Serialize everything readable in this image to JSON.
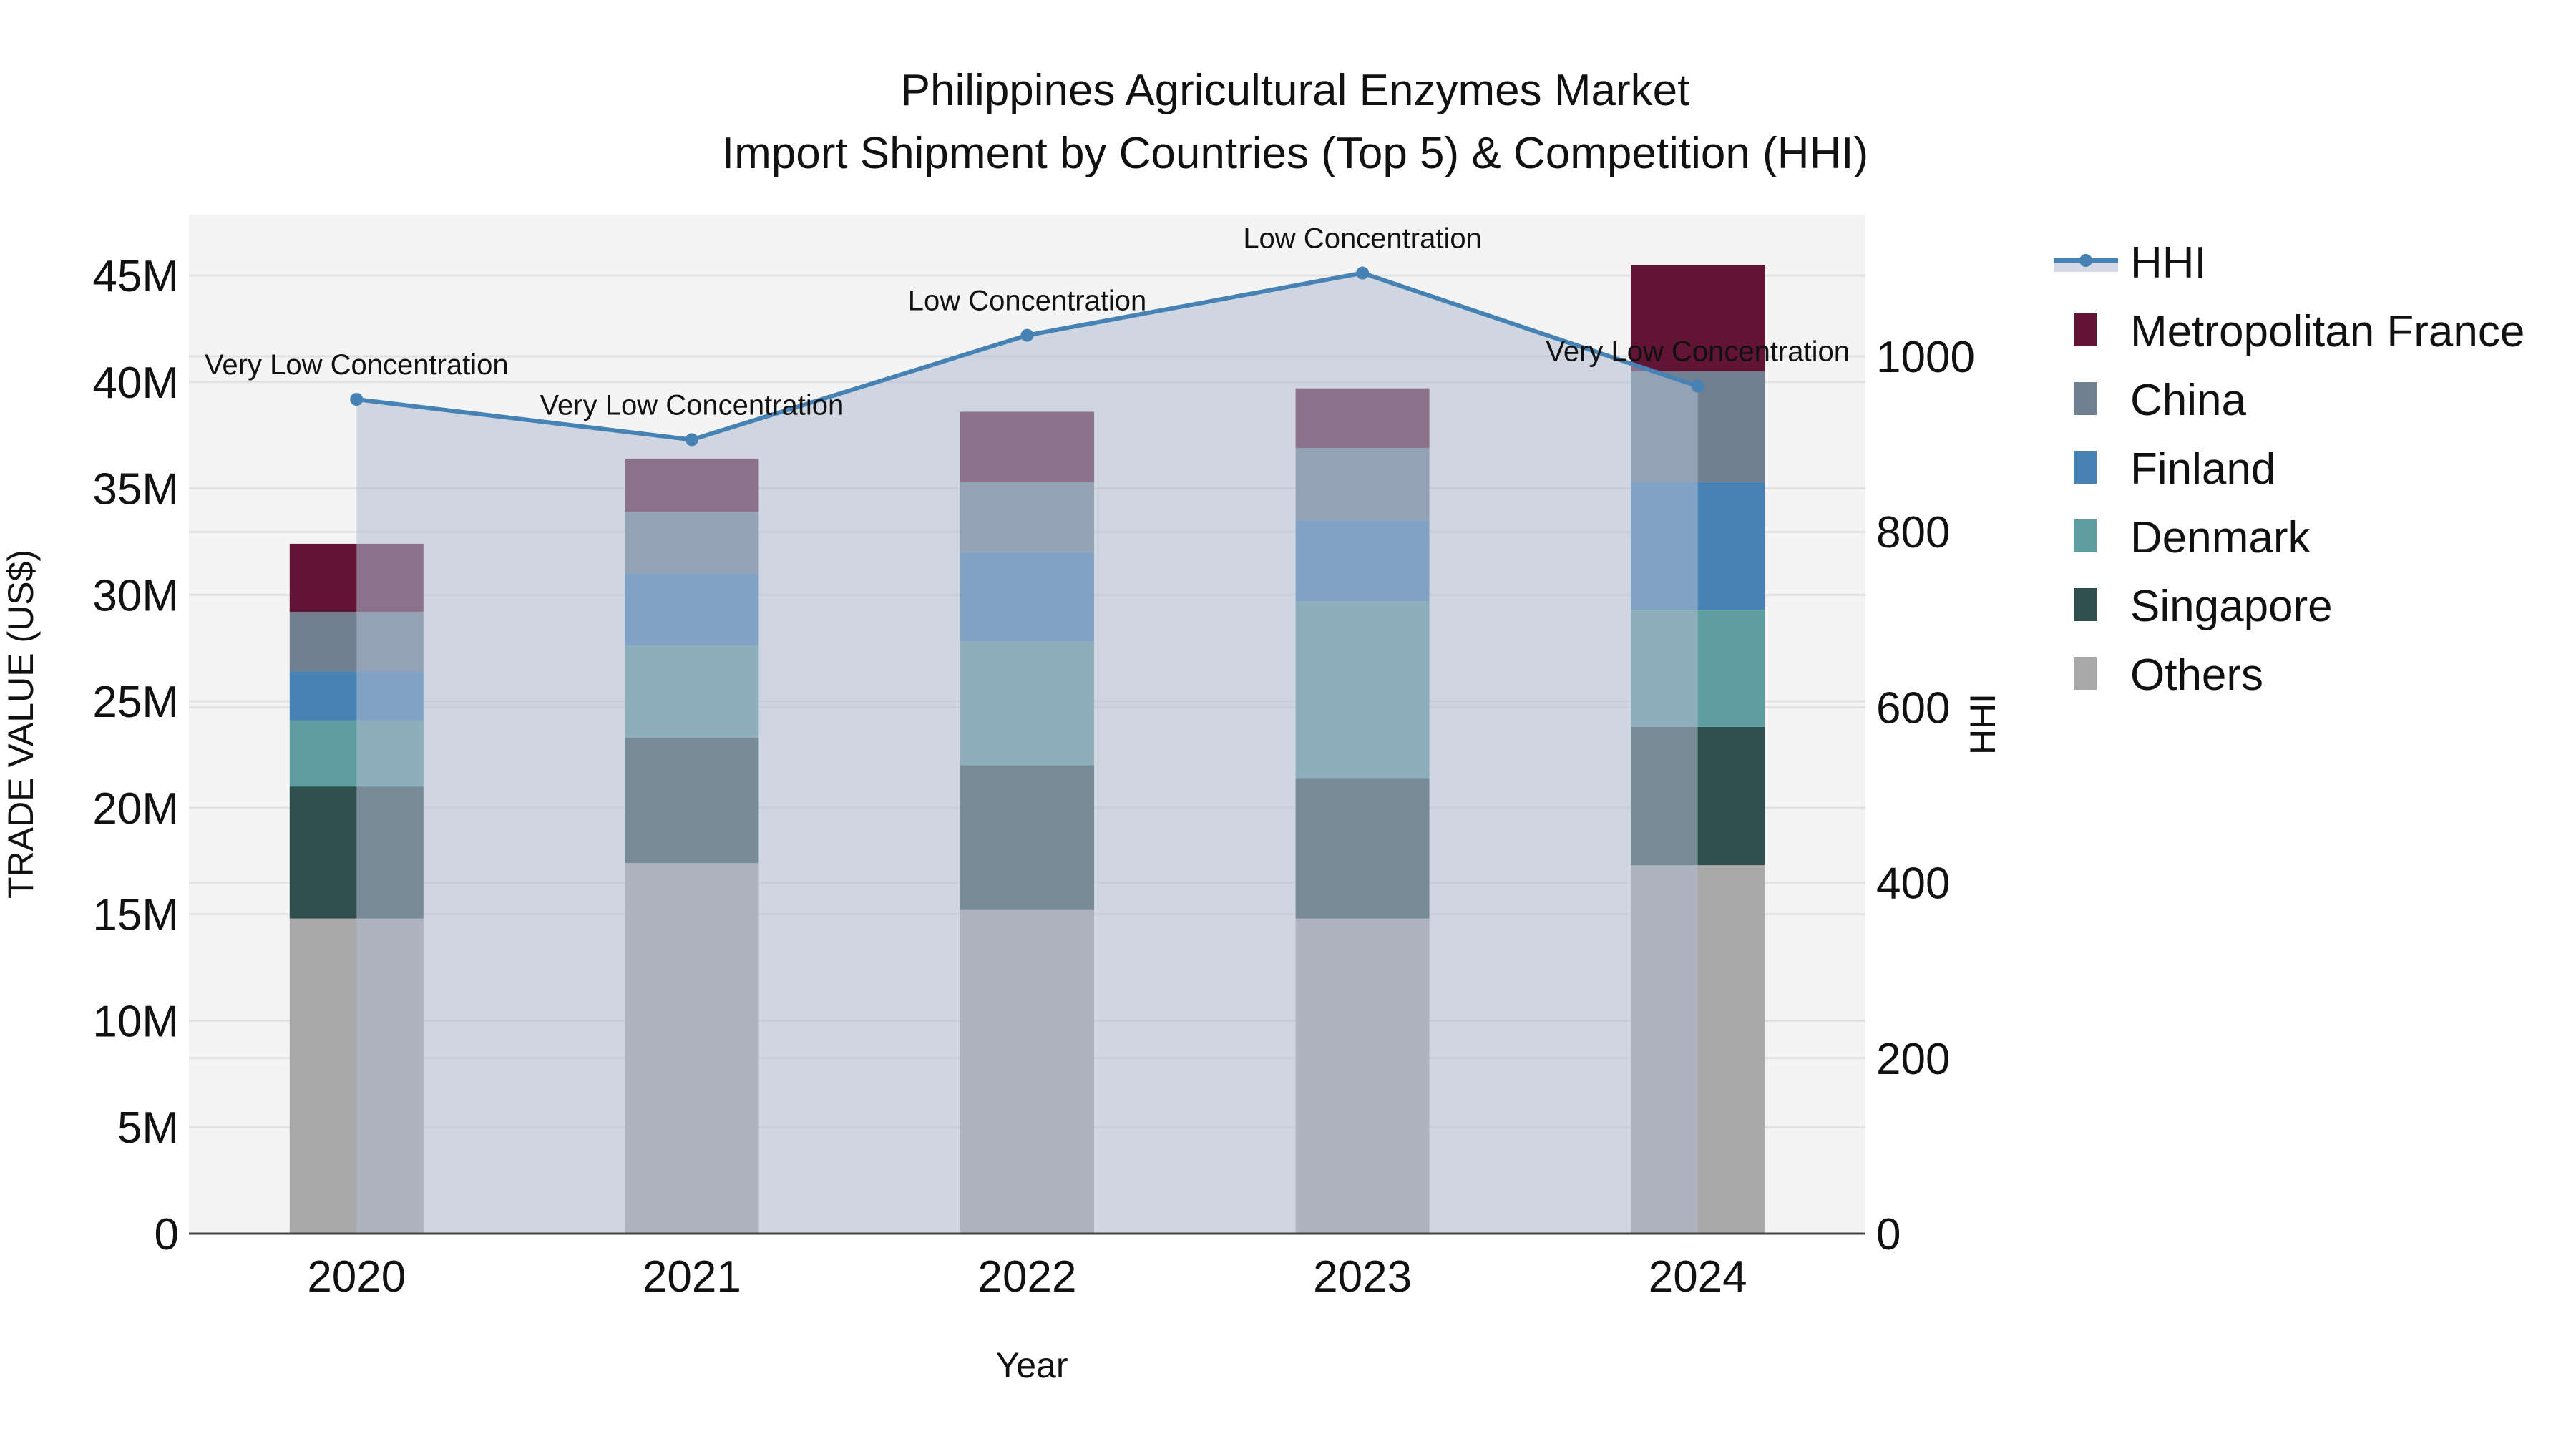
{
  "title": {
    "line1": "Philippines Agricultural Enzymes Market",
    "line2": "Import Shipment by Countries (Top 5) & Competition (HHI)"
  },
  "axes": {
    "x_title": "Year",
    "y_left_title": "TRADE VALUE (US$)",
    "y_right_title": "HHI",
    "y_left_ticks": [
      "0",
      "5M",
      "10M",
      "15M",
      "20M",
      "25M",
      "30M",
      "35M",
      "40M",
      "45M"
    ],
    "y_right_ticks": [
      "0",
      "200",
      "400",
      "600",
      "800",
      "1000"
    ]
  },
  "legend": {
    "items": [
      {
        "label": "HHI",
        "type": "line",
        "color": "#4682b4"
      },
      {
        "label": "Metropolitan France",
        "type": "bar",
        "color": "#611434"
      },
      {
        "label": "China",
        "type": "bar",
        "color": "#708090"
      },
      {
        "label": "Finland",
        "type": "bar",
        "color": "#4682b4"
      },
      {
        "label": "Denmark",
        "type": "bar",
        "color": "#5f9ea0"
      },
      {
        "label": "Singapore",
        "type": "bar",
        "color": "#2f4f4f"
      },
      {
        "label": "Others",
        "type": "bar",
        "color": "#a9a9a9"
      }
    ]
  },
  "colors": {
    "plot_bg": "#f4f4f4",
    "grid": "#e2e2e2",
    "hhi_line": "#4682b4",
    "hhi_fill": "rgba(176,190,210,0.55)",
    "axis_line": "#444444"
  },
  "chart_data": {
    "type": "bar",
    "stacked": true,
    "title": "Philippines Agricultural Enzymes Market — Import Shipment by Countries (Top 5) & Competition (HHI)",
    "xlabel": "Year",
    "ylabel": "TRADE VALUE (US$)",
    "y2label": "HHI",
    "categories": [
      "2020",
      "2021",
      "2022",
      "2023",
      "2024"
    ],
    "ylim": [
      0,
      48000000
    ],
    "y2lim": [
      0,
      1150
    ],
    "grid": true,
    "legend_position": "right",
    "series": [
      {
        "name": "Others",
        "color": "#a9a9a9",
        "values": [
          14800000,
          17400000,
          15200000,
          14800000,
          17300000
        ]
      },
      {
        "name": "Singapore",
        "color": "#2f4f4f",
        "values": [
          6200000,
          5900000,
          6800000,
          6600000,
          6500000
        ]
      },
      {
        "name": "Denmark",
        "color": "#5f9ea0",
        "values": [
          3100000,
          4300000,
          5800000,
          8300000,
          5500000
        ]
      },
      {
        "name": "Finland",
        "color": "#4682b4",
        "values": [
          2300000,
          3400000,
          4200000,
          3800000,
          6000000
        ]
      },
      {
        "name": "China",
        "color": "#708090",
        "values": [
          2800000,
          2900000,
          3300000,
          3400000,
          5200000
        ]
      },
      {
        "name": "Metropolitan France",
        "color": "#611434",
        "values": [
          3200000,
          2500000,
          3300000,
          2800000,
          5000000
        ]
      }
    ],
    "line_series": {
      "name": "HHI",
      "axis": "right",
      "type": "line+area",
      "values": [
        951,
        905,
        1024,
        1095,
        966
      ],
      "annotations": [
        "Very Low Concentration",
        "Very Low Concentration",
        "Low Concentration",
        "Low Concentration",
        "Very Low Concentration"
      ]
    }
  }
}
